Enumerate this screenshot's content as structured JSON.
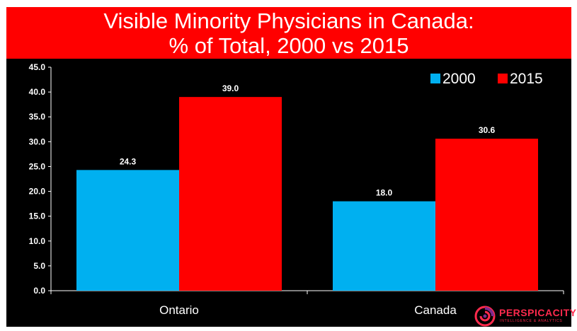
{
  "chart_data": {
    "type": "bar",
    "title": "Visible Minority Physicians in Canada:",
    "subtitle": "% of Total, 2000 vs 2015",
    "categories": [
      "Ontario",
      "Canada"
    ],
    "series": [
      {
        "name": "2000",
        "values": [
          24.3,
          18.0
        ],
        "labels": [
          "24.3",
          "18.0"
        ],
        "color": "#00b0f0"
      },
      {
        "name": "2015",
        "values": [
          39.0,
          30.6
        ],
        "labels": [
          "39.0",
          "30.6"
        ],
        "color": "#ff0000"
      }
    ],
    "ylim": [
      0,
      45
    ],
    "yticks": [
      "0.0",
      "5.0",
      "10.0",
      "15.0",
      "20.0",
      "25.0",
      "30.0",
      "35.0",
      "40.0",
      "45.0"
    ],
    "grid": false,
    "legend_position": "top-right",
    "xlabel": "",
    "ylabel": ""
  },
  "colors": {
    "background": "#000000",
    "title_band": "#ff0000",
    "text": "#ffffff"
  },
  "logo": {
    "name": "PERSPICACITY",
    "tagline": "INTELLIGENCE & ANALYTICS",
    "icon": "spiral-logo-icon"
  }
}
